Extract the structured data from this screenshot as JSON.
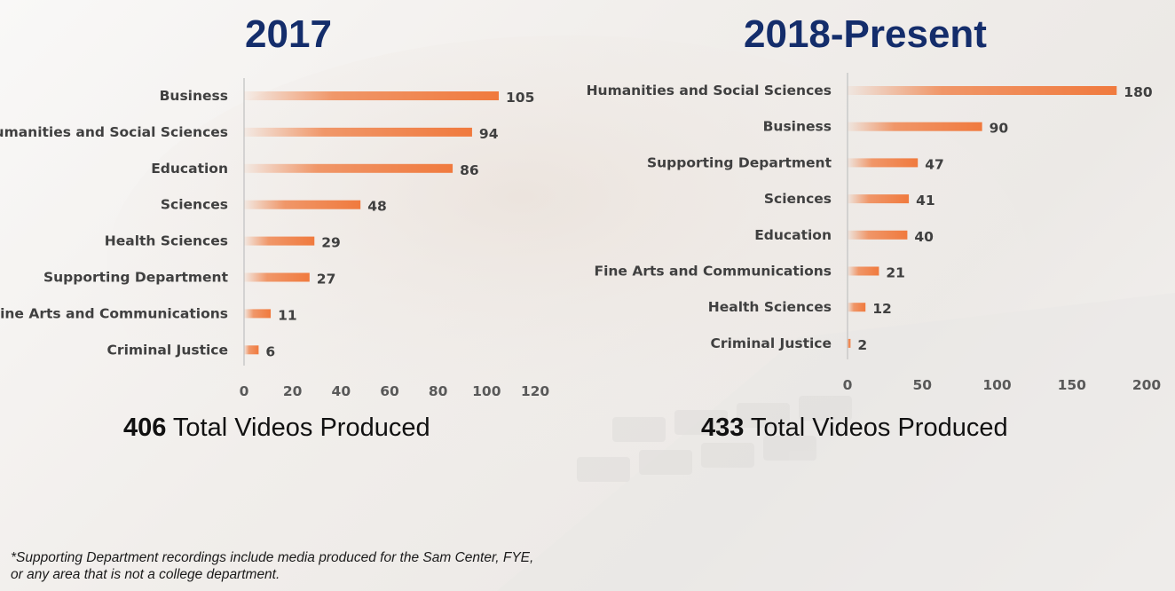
{
  "chart_data": [
    {
      "type": "bar",
      "orientation": "horizontal",
      "title": "2017",
      "categories": [
        "Business",
        "Humanities and Social Sciences",
        "Education",
        "Sciences",
        "Health Sciences",
        "Supporting Department",
        "Fine Arts and Communications",
        "Criminal Justice"
      ],
      "values": [
        105,
        94,
        86,
        48,
        29,
        27,
        11,
        6
      ],
      "xlim": [
        0,
        120
      ],
      "xticks": [
        "0",
        "20",
        "40",
        "60",
        "80",
        "100",
        "120"
      ],
      "grid": false,
      "bar_color": "#f07a3e",
      "total_value": "406",
      "total_text": " Total Videos Produced"
    },
    {
      "type": "bar",
      "orientation": "horizontal",
      "title": "2018-Present",
      "categories": [
        "Humanities and Social Sciences",
        "Business",
        "Supporting Department",
        "Sciences",
        "Education",
        "Fine Arts and Communications",
        "Health Sciences",
        "Criminal Justice"
      ],
      "values": [
        180,
        90,
        47,
        41,
        40,
        21,
        12,
        2
      ],
      "xlim": [
        0,
        200
      ],
      "xticks": [
        "0",
        "50",
        "100",
        "150",
        "200"
      ],
      "grid": false,
      "bar_color": "#f07a3e",
      "total_value": "433",
      "total_text": " Total Videos Produced"
    }
  ],
  "footnote": {
    "line1": "*Supporting Department recordings include media produced for the Sam Center, FYE,",
    "line2": "or any area that is not a college department."
  }
}
